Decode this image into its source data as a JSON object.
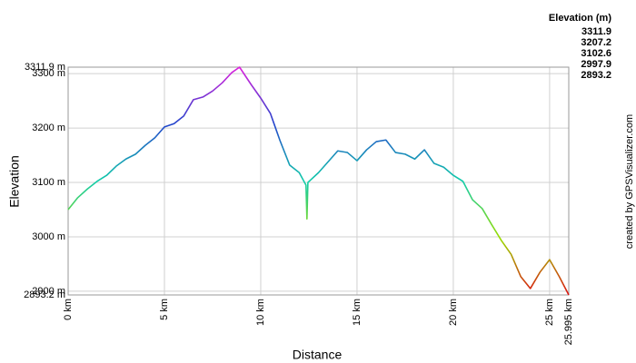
{
  "chart_data": {
    "type": "line",
    "x_label": "Distance",
    "y_label": "Elevation",
    "credit": "created by GPSVisualizer.com",
    "colorbar": {
      "title": "Elevation (m)",
      "values": [
        3311.9,
        3207.2,
        3102.6,
        2997.9,
        2893.2
      ],
      "colors": [
        "#dd22dd",
        "#2244cc",
        "#11ccaa",
        "#99dd00",
        "#dd1111"
      ]
    },
    "x": [
      0,
      0.5,
      1,
      1.5,
      2,
      2.5,
      3,
      3.5,
      4,
      4.5,
      5,
      5.5,
      6,
      6.5,
      7,
      7.5,
      8,
      8.5,
      8.9,
      9.5,
      10,
      10.5,
      11,
      11.5,
      12,
      12.35,
      12.4,
      12.45,
      13,
      13.5,
      14,
      14.5,
      15,
      15.5,
      16,
      16.5,
      17,
      17.5,
      18,
      18.5,
      19,
      19.5,
      20,
      20.5,
      21,
      21.5,
      22,
      22.5,
      23,
      23.5,
      24,
      24.5,
      25,
      25.5,
      25.995
    ],
    "series": [
      {
        "name": "Elevation",
        "values": [
          3050,
          3072,
          3088,
          3102,
          3113,
          3130,
          3143,
          3152,
          3168,
          3182,
          3202,
          3208,
          3222,
          3252,
          3257,
          3268,
          3283,
          3302,
          3311.9,
          3280,
          3255,
          3227,
          3177,
          3132,
          3118,
          3095,
          3033,
          3100,
          3118,
          3138,
          3158,
          3155,
          3140,
          3160,
          3175,
          3178,
          3155,
          3152,
          3143,
          3160,
          3135,
          3128,
          3113,
          3102,
          3068,
          3052,
          3022,
          2993,
          2968,
          2927,
          2905,
          2935,
          2958,
          2927,
          2893.2
        ]
      }
    ],
    "xlim": [
      0,
      25.995
    ],
    "ylim": [
      2893.2,
      3311.9
    ],
    "xticks": [
      {
        "value": 0,
        "label": "0 km"
      },
      {
        "value": 5,
        "label": "5 km"
      },
      {
        "value": 10,
        "label": "10 km"
      },
      {
        "value": 15,
        "label": "15 km"
      },
      {
        "value": 20,
        "label": "20 km"
      },
      {
        "value": 25,
        "label": "25 km"
      },
      {
        "value": 25.995,
        "label": "25.995 km"
      }
    ],
    "yticks": [
      {
        "value": 2893.2,
        "label": "2893.2 m"
      },
      {
        "value": 2900,
        "label": "2900 m"
      },
      {
        "value": 3000,
        "label": "3000 m"
      },
      {
        "value": 3100,
        "label": "3100 m"
      },
      {
        "value": 3200,
        "label": "3200 m"
      },
      {
        "value": 3300,
        "label": "3300 m"
      },
      {
        "value": 3311.9,
        "label": "3311.9 m"
      }
    ],
    "grid": true
  }
}
